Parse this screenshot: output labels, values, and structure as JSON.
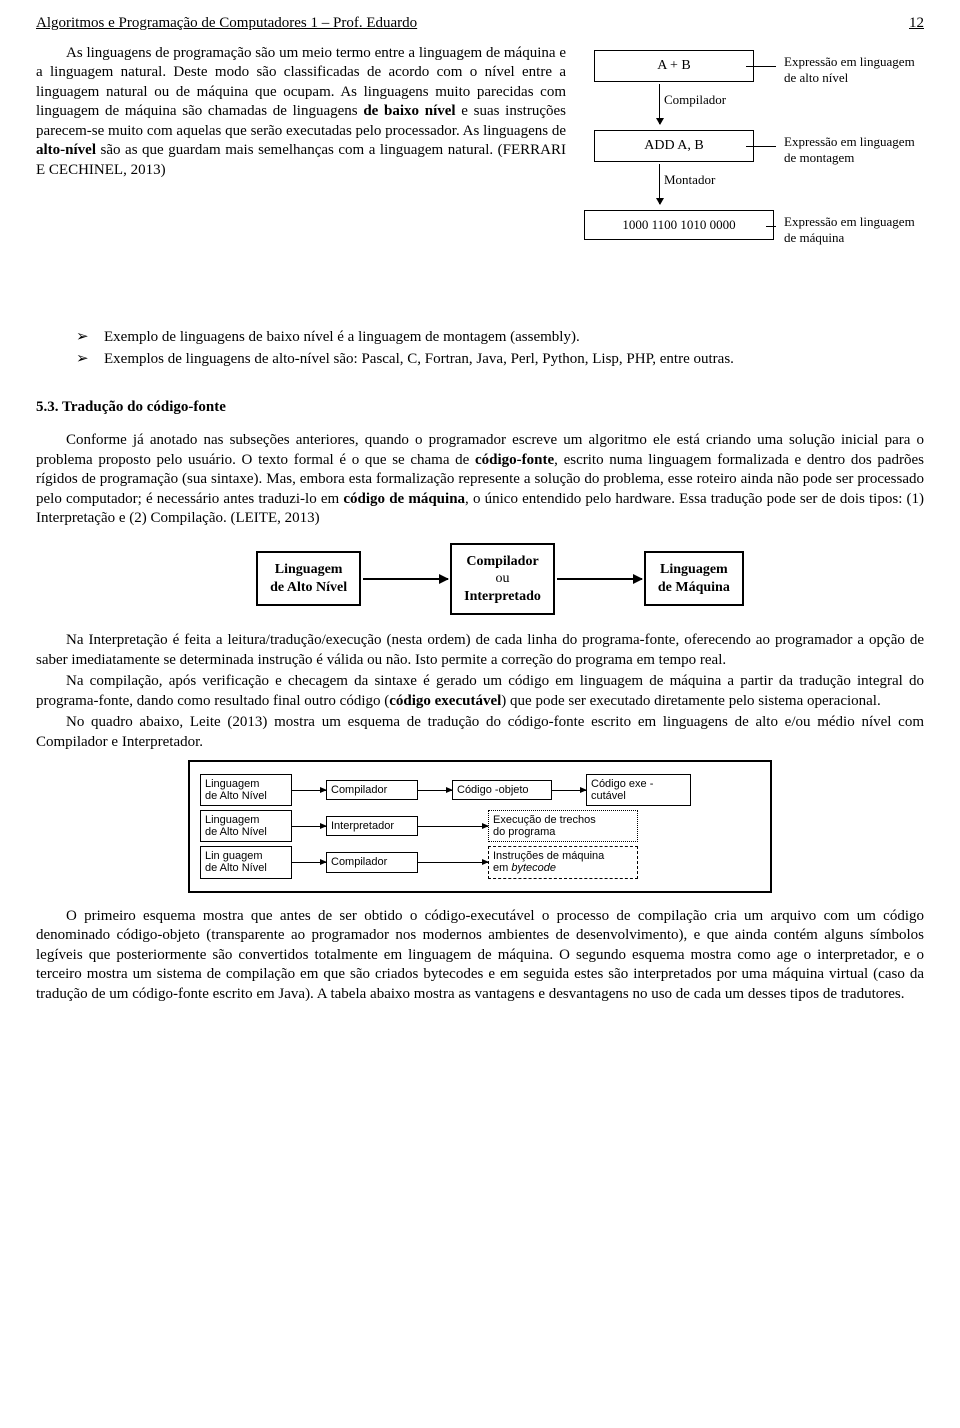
{
  "header": {
    "left": "Algoritmos e Programação de Computadores 1 – Prof. Eduardo",
    "page": "12"
  },
  "intro": "As linguagens de programação são um meio termo entre a linguagem de máquina e a linguagem natural. Deste modo são classificadas de acordo com o nível entre a linguagem natural ou de máquina que ocupam. As linguagens muito parecidas com linguagem de máquina são chamadas de linguagens <b>de baixo nível</b> e suas instruções parecem-se muito com aquelas que serão executadas pelo processador. As linguagens de <b>alto-nível</b> são as que guardam mais semelhanças com a linguagem natural. (FERRARI E CECHINEL, 2013)",
  "diagram1": {
    "box1": "A + B",
    "label1": "Compilador",
    "box2": "ADD A, B",
    "label2": "Montador",
    "box3": "1000 1100 1010 0000",
    "side1": "Expressão em linguagem de alto nível",
    "side2": "Expressão em linguagem de montagem",
    "side3": "Expressão em linguagem de máquina"
  },
  "bullets": [
    "Exemplo de linguagens de baixo nível é a linguagem de montagem (assembly).",
    "Exemplos de linguagens de alto-nível são: Pascal, C, Fortran, Java, Perl, Python, Lisp, PHP, entre outras."
  ],
  "section": "5.3. Tradução do código-fonte",
  "p1": "Conforme já anotado nas subseções anteriores, quando o programador escreve um algoritmo ele está criando uma solução inicial para o problema proposto pelo usuário. O texto formal é o que se chama de <b>código-fonte</b>, escrito numa linguagem formalizada e dentro dos padrões rígidos de programação (sua sintaxe). Mas, embora esta formalização represente a solução do problema, esse roteiro ainda não pode ser processado pelo computador; é necessário antes traduzi-lo em <b>código de máquina</b>, o único entendido pelo hardware. Essa tradução pode ser de dois tipos: (1) Interpretação e (2) Compilação. (LEITE, 2013)",
  "diagram2": {
    "b1a": "Linguagem",
    "b1b": "de Alto Nível",
    "b2a": "Compilador",
    "b2b": "ou",
    "b2c": "Interpretado",
    "b3a": "Linguagem",
    "b3b": "de Máquina"
  },
  "p2": "Na Interpretação é feita a leitura/tradução/execução (nesta ordem) de cada linha do programa-fonte, oferecendo ao programador a opção de saber imediatamente se determinada instrução é válida ou não. Isto permite a correção do programa em tempo real.",
  "p3": "Na compilação, após verificação e checagem da sintaxe é gerado um código em linguagem de máquina a partir da tradução integral do programa-fonte, dando como resultado final outro código (<b>código executável</b>) que pode ser executado diretamente pelo sistema operacional.",
  "p4": "No quadro abaixo, Leite (2013) mostra um esquema de tradução do código-fonte escrito em linguagens de alto e/ou médio nível com Compilador e Interpretador.",
  "diagram3": {
    "r1": {
      "a": "Linguagem<br>de Alto Nível",
      "b": "Compilador",
      "c": "Código -objeto",
      "d": "Código exe -<br>cutável"
    },
    "r2": {
      "a": "Linguagem<br>de Alto Nível",
      "b": "Interpretador",
      "c": "Execução de trechos<br>do programa"
    },
    "r3": {
      "a": "Lin guagem<br>de Alto Nível",
      "b": "Compilador",
      "c": "Instruções de máquina<br>em <i>bytecode</i>"
    }
  },
  "p5": "O primeiro esquema mostra que antes de ser obtido o código-executável o processo de compilação cria um arquivo com um código denominado código-objeto (transparente ao programador nos modernos ambientes de desenvolvimento), e que ainda contém alguns símbolos legíveis que posteriormente são convertidos totalmente em linguagem de máquina. O segundo esquema mostra como age o interpretador, e o terceiro mostra um sistema de compilação em que são criados bytecodes e em seguida estes são interpretados por uma máquina virtual (caso da tradução de um código-fonte escrito em Java). A tabela abaixo mostra as vantagens e desvantagens no uso de cada um desses tipos de tradutores."
}
